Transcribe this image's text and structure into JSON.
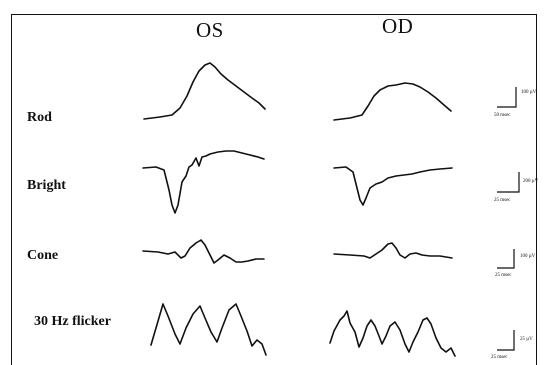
{
  "columns": [
    "OS",
    "OD"
  ],
  "rows": [
    {
      "label": "Rod",
      "scale_amp": "100 µV",
      "scale_time": "50 msec"
    },
    {
      "label": "Bright",
      "scale_amp": "200 µV",
      "scale_time": "25 msec"
    },
    {
      "label": "Cone",
      "scale_amp": "100 µV",
      "scale_time": "25 msec"
    },
    {
      "label": "30 Hz flicker",
      "scale_amp": "25 µV",
      "scale_time": "25 msec"
    }
  ],
  "colors": {
    "trace": "#111111",
    "background": "#ffffff",
    "frame": "#111111"
  }
}
